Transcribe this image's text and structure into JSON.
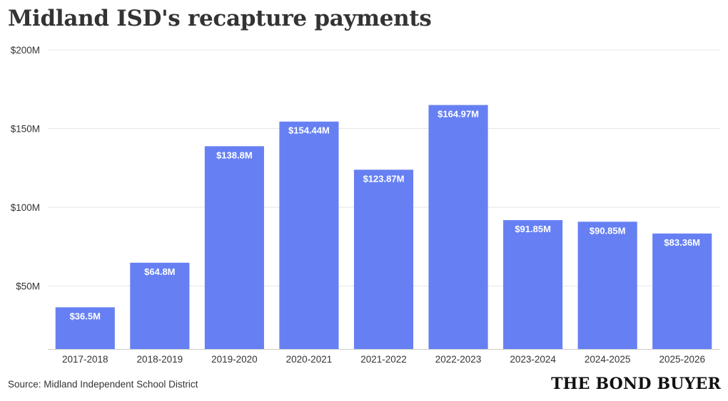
{
  "header": {
    "title": "Midland ISD's recapture payments"
  },
  "footer": {
    "source": "Source: Midland Independent School District",
    "logo_text": "THE BOND BUYER"
  },
  "colors": {
    "bar": "#6680f3",
    "grid": "#e6e6e6",
    "axis": "#333333",
    "bar_label": "#ffffff"
  },
  "chart_data": {
    "type": "bar",
    "title": "Midland ISD's recapture payments",
    "xlabel": "",
    "ylabel": "",
    "categories": [
      "2017-2018",
      "2018-2019",
      "2019-2020",
      "2020-2021",
      "2021-2022",
      "2022-2023",
      "2023-2024",
      "2024-2025",
      "2025-2026"
    ],
    "values": [
      36.5,
      64.8,
      138.8,
      154.44,
      123.87,
      164.97,
      91.85,
      90.85,
      83.36
    ],
    "value_labels": [
      "$36.5M",
      "$64.8M",
      "$138.8M",
      "$154.44M",
      "$123.87M",
      "$164.97M",
      "$91.85M",
      "$90.85M",
      "$83.36M"
    ],
    "ylim": [
      10,
      200
    ],
    "yticks": [
      50,
      100,
      150,
      200
    ],
    "ytick_labels": [
      "$50M",
      "$100M",
      "$150M",
      "$200M"
    ],
    "grid": true,
    "legend": "none"
  }
}
